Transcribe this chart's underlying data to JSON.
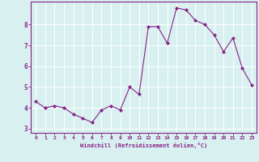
{
  "x": [
    0,
    1,
    2,
    3,
    4,
    5,
    6,
    7,
    8,
    9,
    10,
    11,
    12,
    13,
    14,
    15,
    16,
    17,
    18,
    19,
    20,
    21,
    22,
    23
  ],
  "y": [
    4.3,
    4.0,
    4.1,
    4.0,
    3.7,
    3.5,
    3.3,
    3.9,
    4.1,
    3.9,
    5.0,
    4.65,
    7.9,
    7.9,
    7.1,
    8.8,
    8.7,
    8.2,
    8.0,
    7.5,
    6.7,
    7.35,
    5.9,
    5.1
  ],
  "line_color": "#882288",
  "marker_color": "#882288",
  "bg_color": "#d8f0f0",
  "grid_color": "#ffffff",
  "xlabel": "Windchill (Refroidissement éolien,°C)",
  "xlabel_color": "#882288",
  "tick_color": "#882288",
  "ylim": [
    2.8,
    9.1
  ],
  "xlim": [
    -0.5,
    23.5
  ],
  "yticks": [
    3,
    4,
    5,
    6,
    7,
    8
  ],
  "xticks": [
    0,
    1,
    2,
    3,
    4,
    5,
    6,
    7,
    8,
    9,
    10,
    11,
    12,
    13,
    14,
    15,
    16,
    17,
    18,
    19,
    20,
    21,
    22,
    23
  ],
  "xtick_labels": [
    "0",
    "1",
    "2",
    "3",
    "4",
    "5",
    "6",
    "7",
    "8",
    "9",
    "10",
    "11",
    "12",
    "13",
    "14",
    "15",
    "16",
    "17",
    "18",
    "19",
    "20",
    "21",
    "22",
    "23"
  ]
}
